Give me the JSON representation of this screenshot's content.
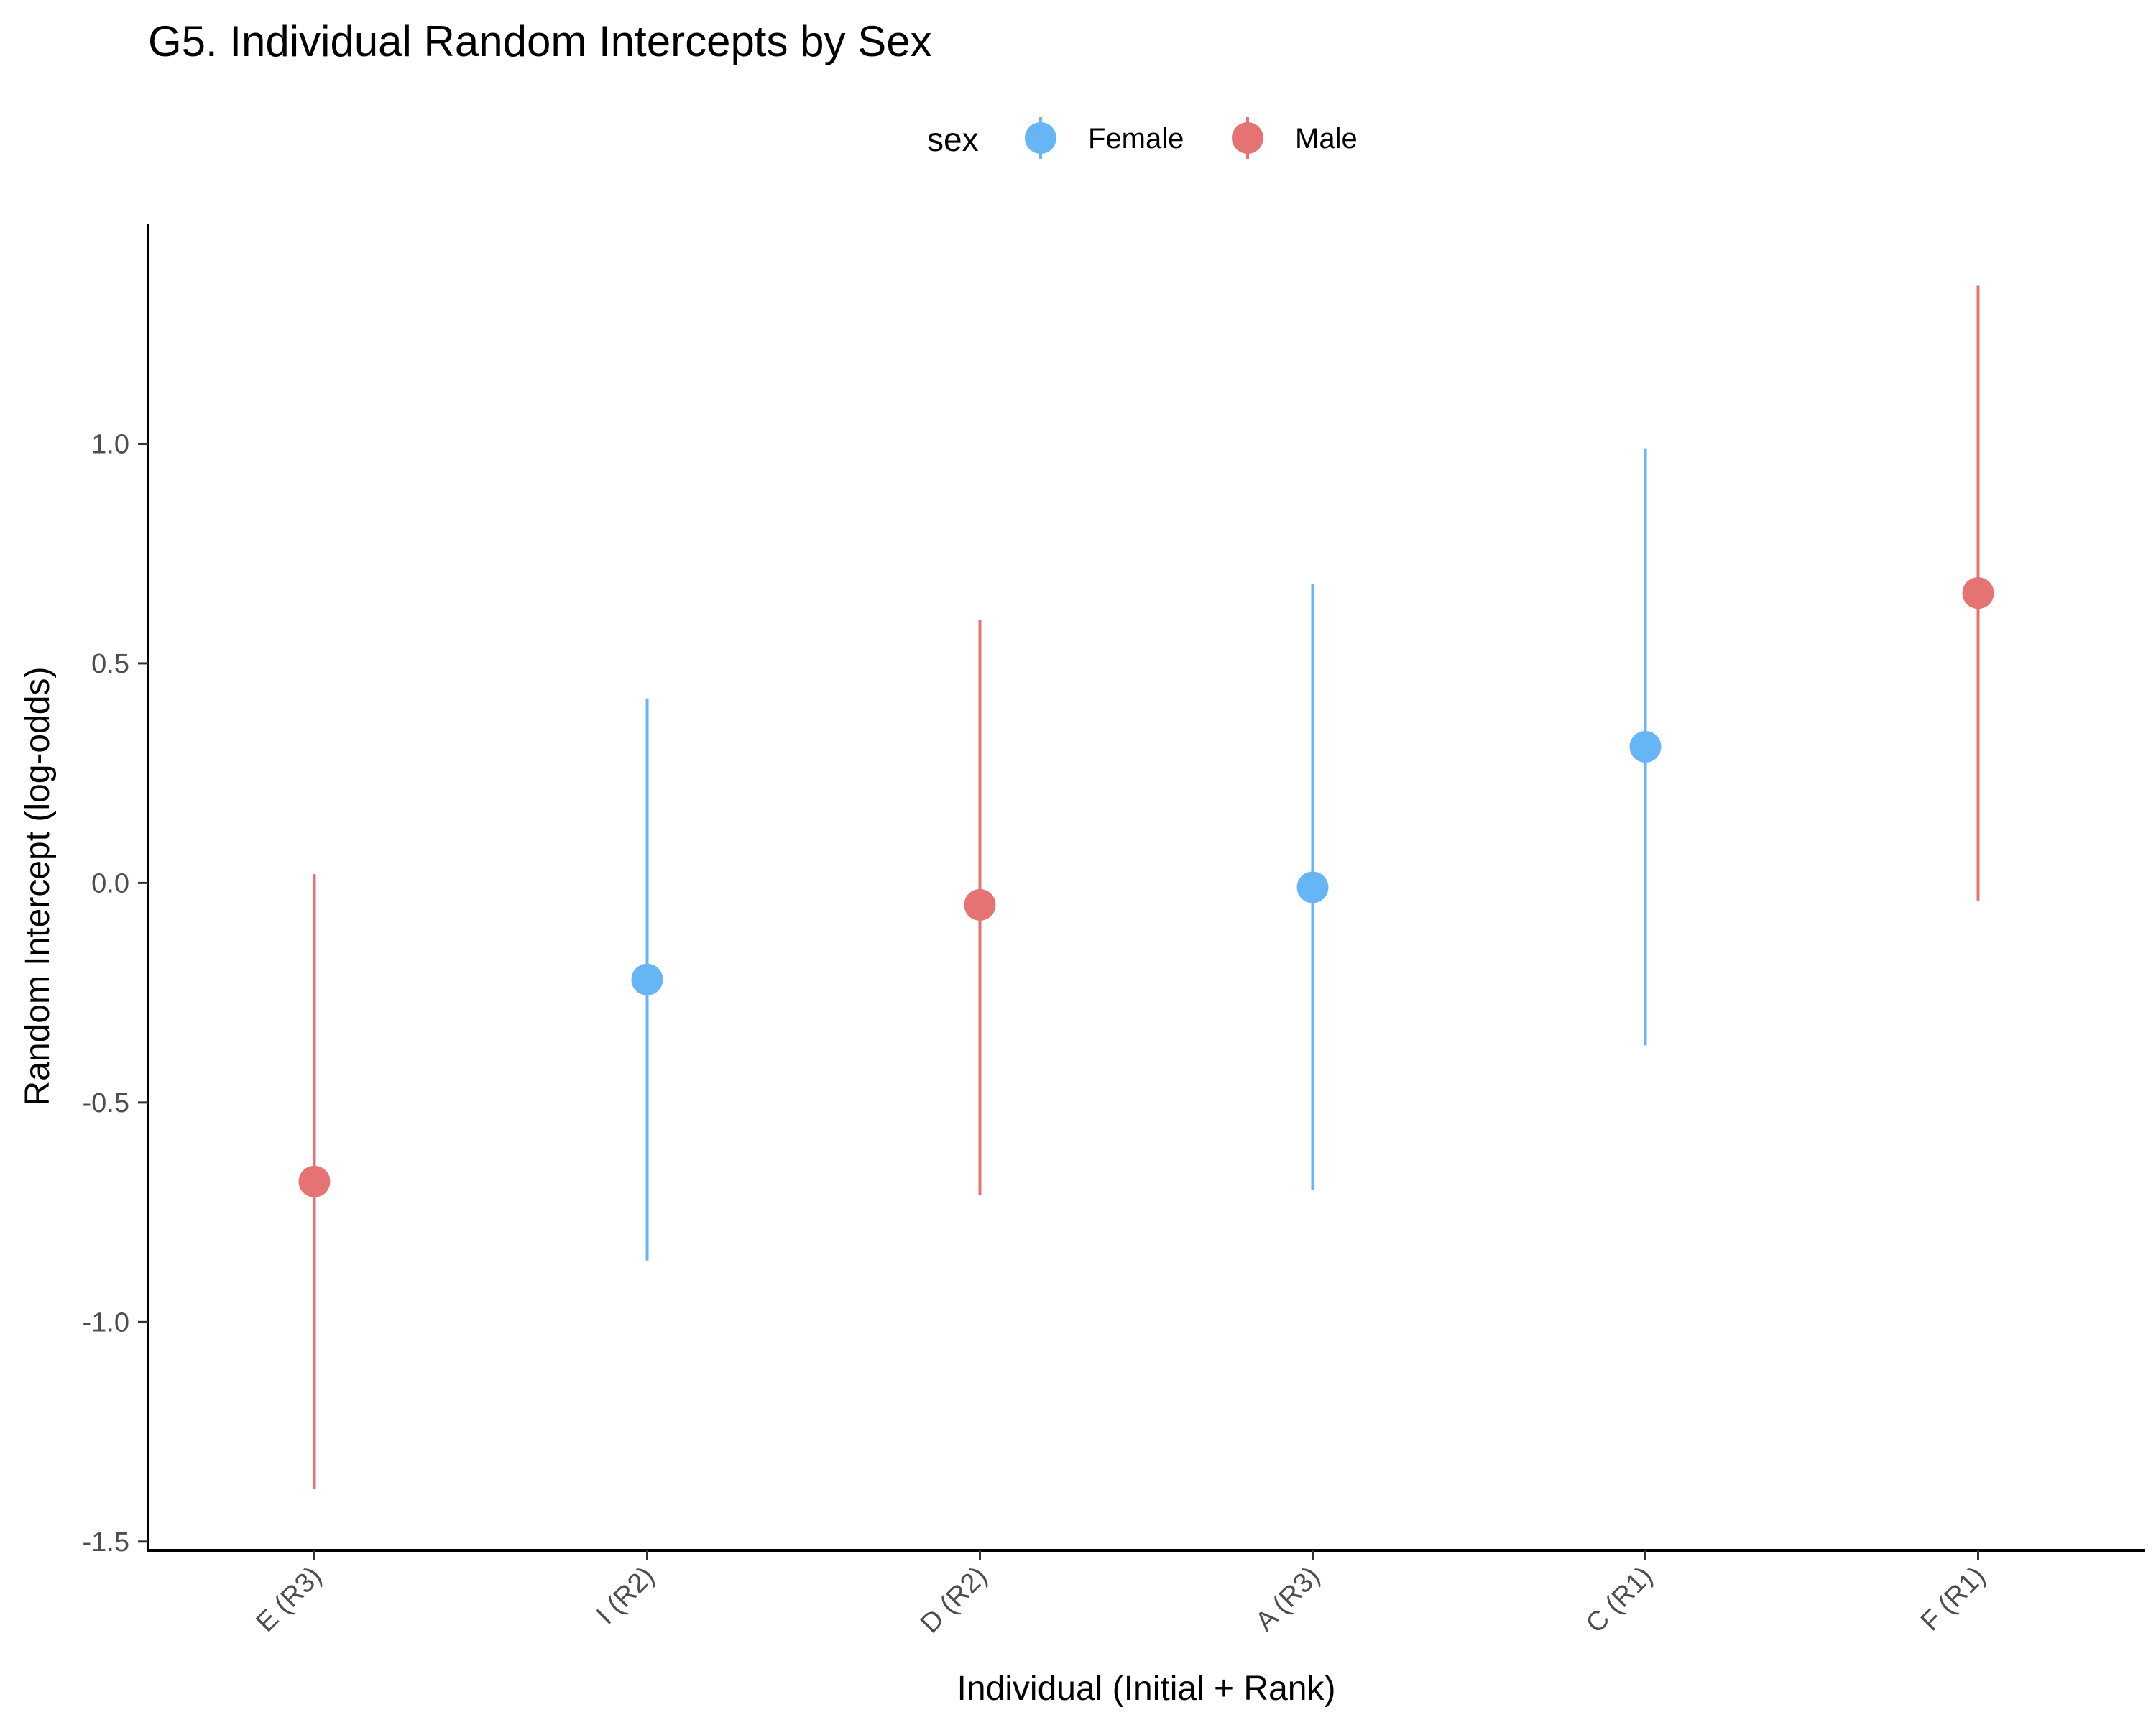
{
  "chart_data": {
    "type": "scatter",
    "subtype": "pointrange",
    "title": "G5. Individual Random Intercepts by Sex",
    "xlabel": "Individual (Initial + Rank)",
    "ylabel": "Random Intercept (log-odds)",
    "ylim": [
      -1.52,
      1.5
    ],
    "yticks": [
      {
        "value": -1.5,
        "label": "-1.5"
      },
      {
        "value": -1.0,
        "label": "-1.0"
      },
      {
        "value": -0.5,
        "label": "-0.5"
      },
      {
        "value": 0.0,
        "label": "0.0"
      },
      {
        "value": 0.5,
        "label": "0.5"
      },
      {
        "value": 1.0,
        "label": "1.0"
      }
    ],
    "categories": [
      "E (R3)",
      "I (R2)",
      "D (R2)",
      "A (R3)",
      "C (R1)",
      "F (R1)"
    ],
    "grid": false,
    "legend": {
      "title": "sex",
      "position": "top",
      "entries": [
        {
          "label": "Female",
          "color": "#66b6f5"
        },
        {
          "label": "Male",
          "color": "#e57373"
        }
      ]
    },
    "points": [
      {
        "x": "E (R3)",
        "sex": "Male",
        "y": -0.68,
        "lower": -1.38,
        "upper": 0.02
      },
      {
        "x": "I (R2)",
        "sex": "Female",
        "y": -0.22,
        "lower": -0.86,
        "upper": 0.42
      },
      {
        "x": "D (R2)",
        "sex": "Male",
        "y": -0.05,
        "lower": -0.71,
        "upper": 0.6
      },
      {
        "x": "A (R3)",
        "sex": "Female",
        "y": -0.01,
        "lower": -0.7,
        "upper": 0.68
      },
      {
        "x": "C (R1)",
        "sex": "Female",
        "y": 0.31,
        "lower": -0.37,
        "upper": 0.99
      },
      {
        "x": "F (R1)",
        "sex": "Male",
        "y": 0.66,
        "lower": -0.04,
        "upper": 1.36
      }
    ]
  }
}
